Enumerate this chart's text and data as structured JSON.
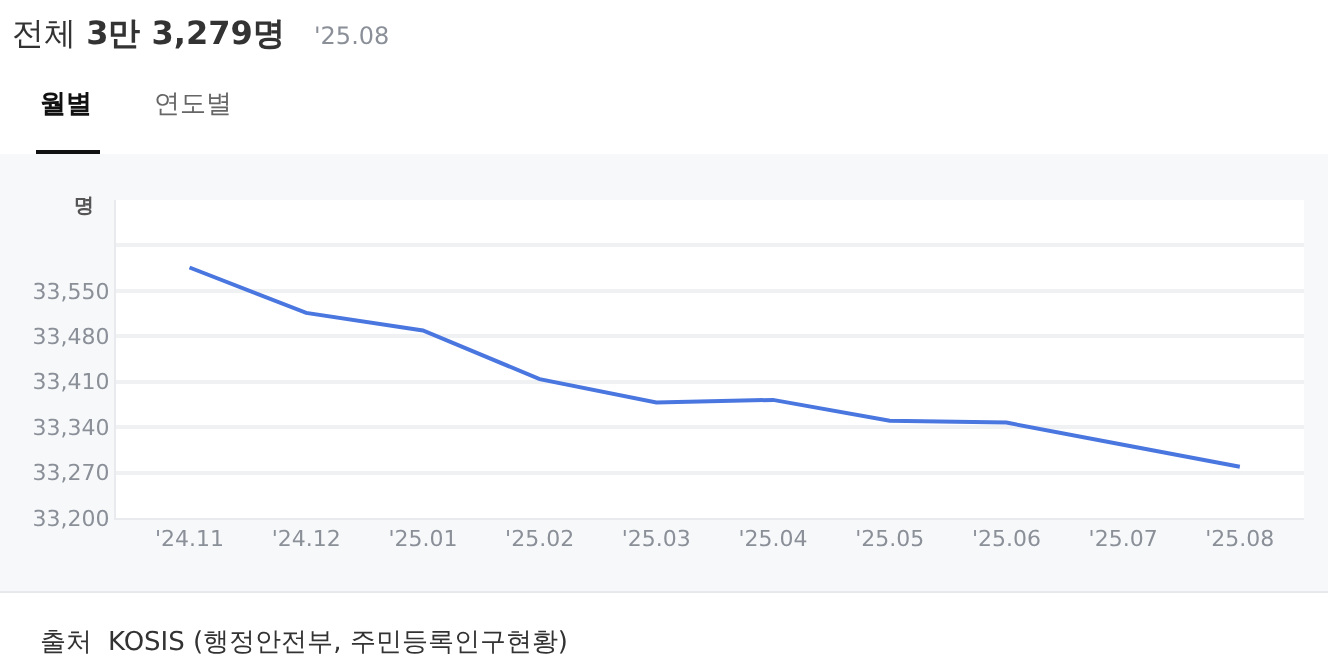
{
  "chart_data": {
    "type": "line",
    "title": "전체 3만 3,279명",
    "subtitle": "'25.08",
    "ylabel": "명",
    "annotations": [
      "월별",
      "연도별",
      "출처",
      "KOSIS (행정안전부, 주민등록인구현황)"
    ],
    "categories": [
      "'24.11",
      "'24.12",
      "'25.01",
      "'25.02",
      "'25.03",
      "'25.04",
      "'25.05",
      "'25.06",
      "'25.07",
      "'25.08"
    ],
    "series": [
      {
        "color": "#4a76e0",
        "values": [
          33586,
          33516,
          33489,
          33414,
          33378,
          33382,
          33350,
          33347,
          33313,
          33279
        ]
      }
    ],
    "ylim": [
      33200,
      33690
    ],
    "yticks": [
      {
        "value": 33200,
        "label": "33,200"
      },
      {
        "value": 33270,
        "label": "33,270"
      },
      {
        "value": 33340,
        "label": "33,340"
      },
      {
        "value": 33410,
        "label": "33,410"
      },
      {
        "value": 33480,
        "label": "33,480"
      },
      {
        "value": 33550,
        "label": "33,550"
      },
      {
        "value": 33620,
        "label": null
      }
    ],
    "grid": "y",
    "marker": "none",
    "line_style": "solid"
  }
}
